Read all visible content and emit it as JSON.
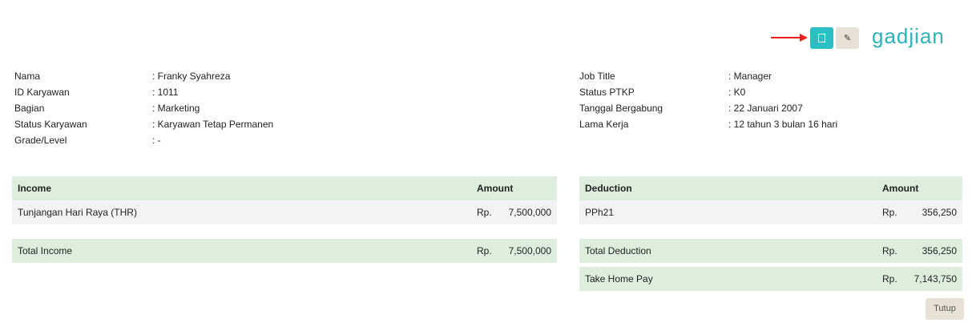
{
  "toolbar": {
    "arrow_color": "#e8221b",
    "pdf_icon": "document-icon",
    "edit_icon": "pencil-icon",
    "accent": "#2bbfc4"
  },
  "logo": "gadjian",
  "info_left": [
    {
      "label": "Nama",
      "value": ": Franky Syahreza"
    },
    {
      "label": "ID Karyawan",
      "value": ": 1011"
    },
    {
      "label": "Bagian",
      "value": ": Marketing"
    },
    {
      "label": "Status Karyawan",
      "value": ": Karyawan Tetap Permanen"
    },
    {
      "label": "Grade/Level",
      "value": ": -"
    }
  ],
  "info_right": [
    {
      "label": "Job Title",
      "value": ": Manager"
    },
    {
      "label": "Status PTKP",
      "value": ": K0"
    },
    {
      "label": "Tanggal Bergabung",
      "value": ": 22 Januari 2007"
    },
    {
      "label": "Lama Kerja",
      "value": ": 12 tahun 3 bulan 16 hari"
    }
  ],
  "income": {
    "header": "Income",
    "amount_header": "Amount",
    "items": [
      {
        "name": "Tunjangan Hari Raya (THR)",
        "currency": "Rp.",
        "amount": "7,500,000"
      }
    ],
    "total": {
      "name": "Total Income",
      "currency": "Rp.",
      "amount": "7,500,000"
    }
  },
  "deduction": {
    "header": "Deduction",
    "amount_header": "Amount",
    "items": [
      {
        "name": "PPh21",
        "currency": "Rp.",
        "amount": "356,250"
      }
    ],
    "total": {
      "name": "Total Deduction",
      "currency": "Rp.",
      "amount": "356,250"
    },
    "take_home": {
      "name": "Take Home Pay",
      "currency": "Rp.",
      "amount": "7,143,750"
    }
  },
  "close_label": "Tutup"
}
